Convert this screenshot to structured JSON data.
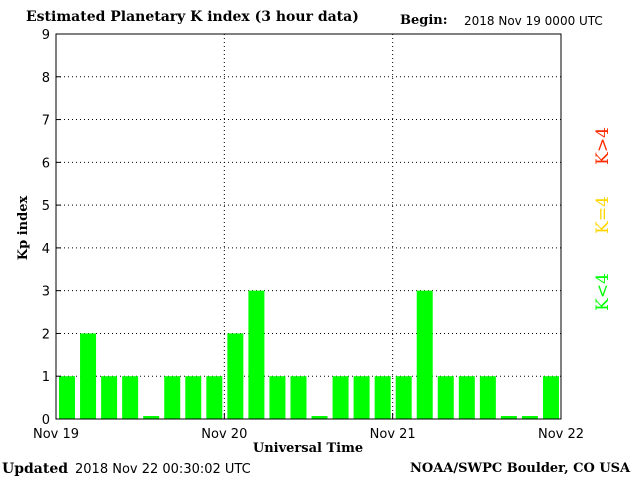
{
  "header": {
    "title": "Estimated Planetary K index (3 hour data)",
    "begin_label": "Begin:",
    "begin_value": "2018 Nov 19 0000 UTC"
  },
  "footer": {
    "updated_label": "Updated",
    "updated_value": "2018 Nov 22 00:30:02 UTC",
    "source": "NOAA/SWPC Boulder, CO USA"
  },
  "legend": [
    {
      "label": "K<4",
      "color": "#00ff00"
    },
    {
      "label": "K=4",
      "color": "#ffd700"
    },
    {
      "label": "K>4",
      "color": "#ff2a00"
    }
  ],
  "chart_data": {
    "type": "bar",
    "title": "Estimated Planetary K index (3 hour data)",
    "xlabel": "Universal Time",
    "ylabel": "Kp index",
    "ylim": [
      0,
      9
    ],
    "yticks": [
      "0",
      "1",
      "2",
      "3",
      "4",
      "5",
      "6",
      "7",
      "8",
      "9"
    ],
    "xticks": [
      "Nov 19",
      "Nov 20",
      "Nov 21",
      "Nov 22"
    ],
    "grid": true,
    "bar_color": "#00ff00",
    "values": [
      1,
      2,
      1,
      1,
      0.07,
      1,
      1,
      1,
      2,
      3,
      1,
      1,
      0.07,
      1,
      1,
      1,
      1,
      3,
      1,
      1,
      1,
      0.07,
      0.07,
      1
    ]
  }
}
